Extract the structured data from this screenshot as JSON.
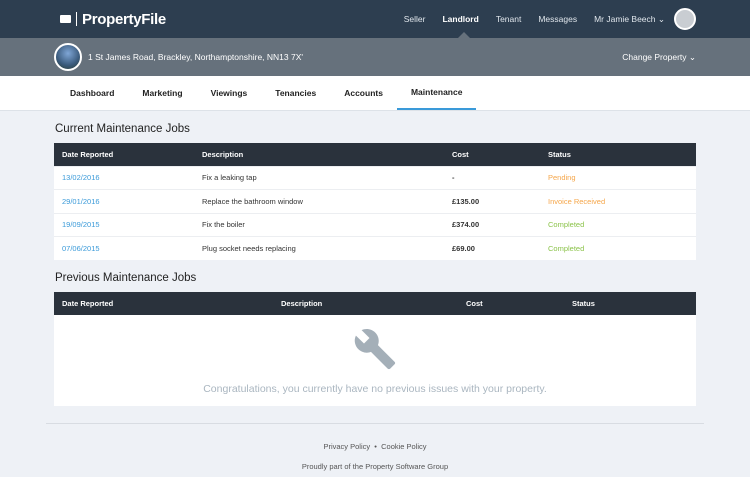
{
  "header": {
    "brand": "PropertyFile",
    "nav": [
      "Seller",
      "Landlord",
      "Tenant",
      "Messages"
    ],
    "user": "Mr Jamie Beech ⌄"
  },
  "property": {
    "address": "1 St James Road, Brackley, Northamptonshire, NN13 7X'",
    "change": "Change Property ⌄"
  },
  "tabs": [
    "Dashboard",
    "Marketing",
    "Viewings",
    "Tenancies",
    "Accounts",
    "Maintenance"
  ],
  "current": {
    "title": "Current Maintenance Jobs",
    "headers": [
      "Date Reported",
      "Description",
      "Cost",
      "Status"
    ],
    "rows": [
      [
        "13/02/2016",
        "Fix a leaking tap",
        "-",
        "Pending"
      ],
      [
        "29/01/2016",
        "Replace the bathroom window",
        "£135.00",
        "Invoice Received"
      ],
      [
        "19/09/2015",
        "Fix the boiler",
        "£374.00",
        "Completed"
      ],
      [
        "07/06/2015",
        "Plug socket needs replacing",
        "£69.00",
        "Completed"
      ]
    ]
  },
  "previous": {
    "title": "Previous Maintenance Jobs",
    "headers": [
      "Date Reported",
      "Description",
      "Cost",
      "Status"
    ],
    "empty": "Congratulations, you currently have no previous issues with your property."
  },
  "footer": {
    "links": [
      "Privacy Policy",
      "Cookie Policy"
    ],
    "sep": "•",
    "tagline": "Proudly part of the Property Software Group"
  },
  "colors": {
    "pending": "#f5a64a",
    "completed": "#8bc34a",
    "link": "#3a9ad9"
  }
}
